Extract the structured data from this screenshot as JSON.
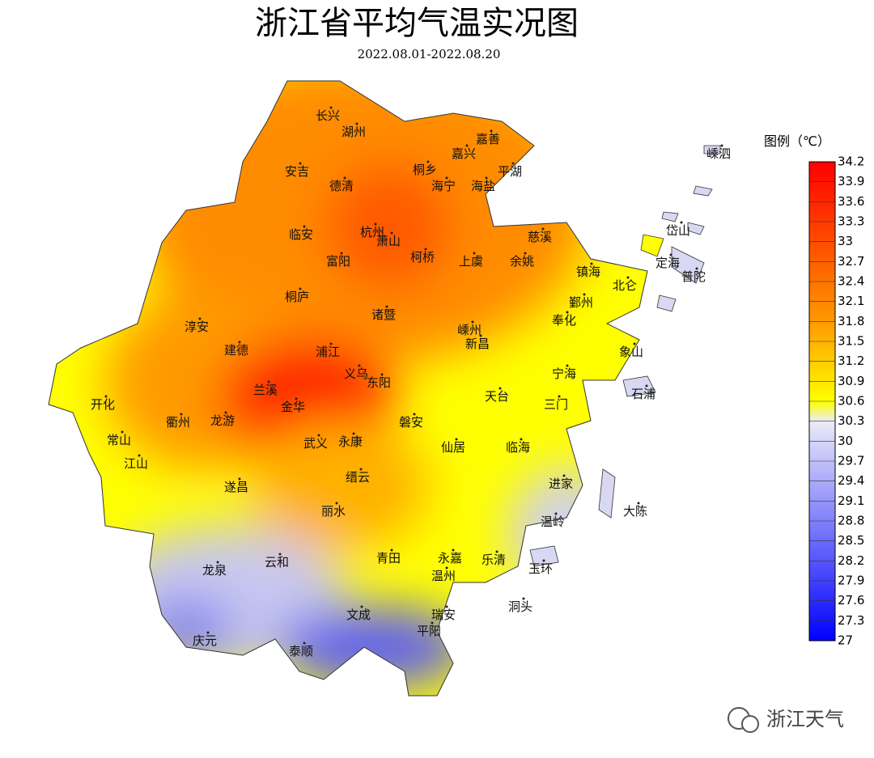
{
  "title": "浙江省平均气温实况图",
  "subtitle": "2022.08.01-2022.08.20",
  "cities": [
    "长兴",
    "湖州",
    "嘉善",
    "嵊泗",
    "嘉兴",
    "桐乡",
    "平湖",
    "安吉",
    "德清",
    "海宁",
    "海盐",
    "岱山",
    "临安",
    "杭州",
    "萧山",
    "慈溪",
    "定海",
    "普陀",
    "富阳",
    "柯桥",
    "上虞",
    "余姚",
    "镇海",
    "北仑",
    "桐庐",
    "鄞州",
    "诸暨",
    "奉化",
    "淳安",
    "嵊州",
    "新昌",
    "建德",
    "浦江",
    "象山",
    "义乌",
    "宁海",
    "兰溪",
    "东阳",
    "天台",
    "石浦",
    "开化",
    "金华",
    "三门",
    "衢州",
    "龙游",
    "磐安",
    "常山",
    "武义",
    "永康",
    "仙居",
    "临海",
    "江山",
    "缙云",
    "遂昌",
    "进家",
    "大陈",
    "丽水",
    "温岭",
    "青田",
    "永嘉",
    "乐清",
    "云和",
    "龙泉",
    "玉环",
    "温州",
    "洞头",
    "文成",
    "瑞安",
    "平阳",
    "庆元",
    "泰顺"
  ],
  "legend": {
    "title": "图例（℃）",
    "ticks": [
      34.2,
      33.9,
      33.6,
      33.3,
      33,
      32.7,
      32.4,
      32.1,
      31.8,
      31.5,
      31.2,
      30.9,
      30.6,
      30.3,
      30,
      29.7,
      29.4,
      29.1,
      28.8,
      28.5,
      28.2,
      27.9,
      27.6,
      27.3,
      27
    ]
  },
  "watermark": "浙江天气"
}
